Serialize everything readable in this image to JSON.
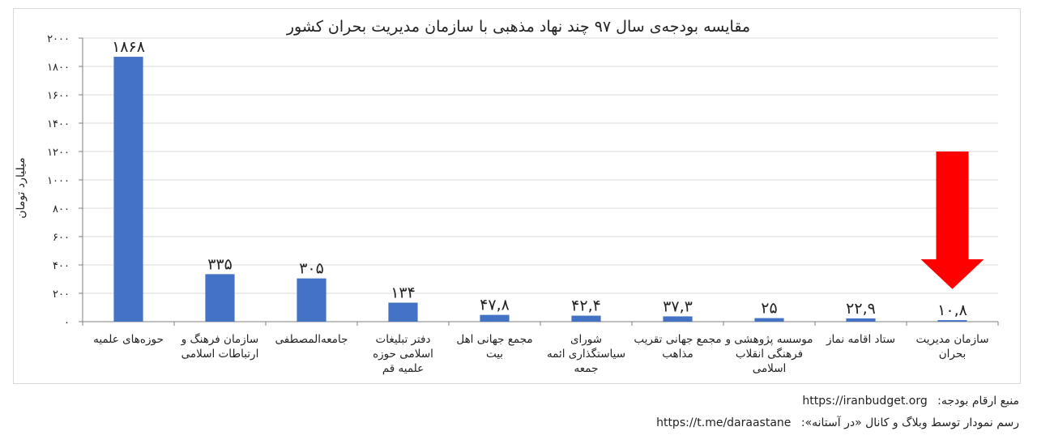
{
  "chart_data": {
    "type": "bar",
    "title": "مقایسه بودجه‌ی سال ۹۷ چند نهاد مذهبی با سازمان مدیریت بحران کشور",
    "ylabel": "میلیارد تومان",
    "ylim": [
      0,
      2000
    ],
    "yticks": [
      "۰",
      "۲۰۰",
      "۴۰۰",
      "۶۰۰",
      "۸۰۰",
      "۱۰۰۰",
      "۱۲۰۰",
      "۱۴۰۰",
      "۱۶۰۰",
      "۱۸۰۰",
      "۲۰۰۰"
    ],
    "ytick_values": [
      0,
      200,
      400,
      600,
      800,
      1000,
      1200,
      1400,
      1600,
      1800,
      2000
    ],
    "categories": [
      [
        "حوزه‌های علمیه"
      ],
      [
        "سازمان فرهنگ و",
        "ارتباطات اسلامی"
      ],
      [
        "جامعه‌المصطفی"
      ],
      [
        "دفتر تبلیغات",
        "اسلامی حوزه",
        "علمیه قم"
      ],
      [
        "مجمع جهانی اهل",
        "بیت"
      ],
      [
        "شورای",
        "سیاستگذاری ائمه",
        "جمعه"
      ],
      [
        "مجمع جهانی تقریب",
        "مذاهب"
      ],
      [
        "موسسه پژوهشی و",
        "فرهنگی انقلاب",
        "اسلامی"
      ],
      [
        "ستاد اقامه نماز"
      ],
      [
        "سازمان مدیریت",
        "بحران"
      ]
    ],
    "values": [
      1868,
      335,
      305,
      134,
      47.8,
      42.4,
      37.3,
      25,
      22.9,
      10.8
    ],
    "value_labels": [
      "۱۸۶۸",
      "۳۳۵",
      "۳۰۵",
      "۱۳۴",
      "۴۷,۸",
      "۴۲,۴",
      "۳۷,۳",
      "۲۵",
      "۲۲,۹",
      "۱۰,۸"
    ],
    "bar_color": "#4472c4",
    "grid": true,
    "annotation": {
      "type": "arrow",
      "target_index": 9,
      "color": "#ff0000"
    }
  },
  "footer": {
    "source_label": "منبع ارقام بودجه:",
    "source_url": "https://iranbudget.org",
    "credit_label": "رسم نمودار توسط وبلاگ و کانال «در آستانه»:",
    "credit_url": "https://t.me/daraastane"
  }
}
